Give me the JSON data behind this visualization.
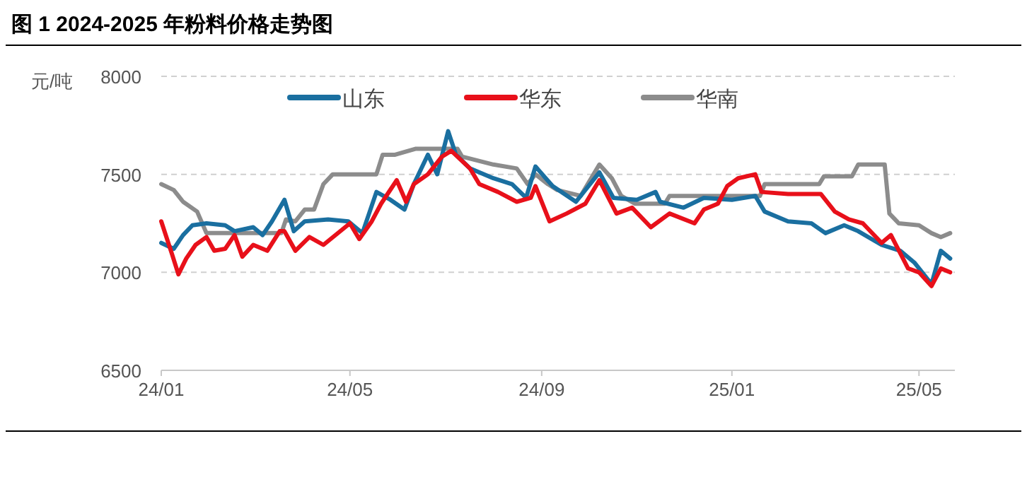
{
  "chart_data": {
    "type": "line",
    "title": "图 1 2024-2025 年粉料价格走势图",
    "ylabel": "元/吨",
    "xlim": [
      "2024-01-01",
      "2025-05-24"
    ],
    "ylim": [
      6500,
      8000
    ],
    "yticks": [
      6500,
      7000,
      7500,
      8000
    ],
    "xticks": [
      {
        "value": "2024-01-01",
        "label": "24/01"
      },
      {
        "value": "2024-05-01",
        "label": "24/05"
      },
      {
        "value": "2024-09-01",
        "label": "24/09"
      },
      {
        "value": "2025-01-01",
        "label": "25/01"
      },
      {
        "value": "2025-05-01",
        "label": "25/05"
      }
    ],
    "grid": "y",
    "legend": "top",
    "marker": "none",
    "line_style": "solid",
    "series": [
      {
        "name": "山东",
        "color": "#1a6fa0",
        "x": [
          "2024-01-01",
          "2024-01-09",
          "2024-01-15",
          "2024-01-21",
          "2024-01-30",
          "2024-02-11",
          "2024-02-17",
          "2024-02-29",
          "2024-03-06",
          "2024-03-12",
          "2024-03-20",
          "2024-03-26",
          "2024-04-02",
          "2024-04-17",
          "2024-04-30",
          "2024-05-09",
          "2024-05-18",
          "2024-05-27",
          "2024-06-05",
          "2024-06-11",
          "2024-06-20",
          "2024-06-26",
          "2024-07-03",
          "2024-07-08",
          "2024-07-17",
          "2024-08-01",
          "2024-08-13",
          "2024-08-22",
          "2024-08-28",
          "2024-09-08",
          "2024-09-23",
          "2024-10-08",
          "2024-10-17",
          "2024-11-01",
          "2024-11-13",
          "2024-11-16",
          "2024-12-01",
          "2024-12-14",
          "2025-01-01",
          "2025-01-16",
          "2025-01-22",
          "2025-02-06",
          "2025-02-21",
          "2025-03-02",
          "2025-03-14",
          "2025-03-23",
          "2025-04-07",
          "2025-04-19",
          "2025-04-28",
          "2025-05-09",
          "2025-05-15",
          "2025-05-21"
        ],
        "values": [
          7150,
          7120,
          7190,
          7240,
          7250,
          7240,
          7210,
          7230,
          7190,
          7260,
          7370,
          7210,
          7260,
          7270,
          7260,
          7200,
          7410,
          7370,
          7320,
          7450,
          7600,
          7500,
          7720,
          7600,
          7530,
          7480,
          7450,
          7380,
          7540,
          7440,
          7360,
          7510,
          7380,
          7370,
          7410,
          7360,
          7330,
          7380,
          7370,
          7390,
          7310,
          7260,
          7250,
          7200,
          7240,
          7210,
          7140,
          7110,
          7050,
          6940,
          7110,
          7070
        ]
      },
      {
        "name": "华东",
        "color": "#e8101a",
        "x": [
          "2024-01-01",
          "2024-01-08",
          "2024-01-12",
          "2024-01-17",
          "2024-01-23",
          "2024-01-30",
          "2024-02-04",
          "2024-02-11",
          "2024-02-17",
          "2024-02-22",
          "2024-02-29",
          "2024-03-09",
          "2024-03-17",
          "2024-03-20",
          "2024-03-27",
          "2024-04-05",
          "2024-04-14",
          "2024-05-01",
          "2024-05-07",
          "2024-05-15",
          "2024-05-21",
          "2024-05-31",
          "2024-06-06",
          "2024-06-11",
          "2024-06-20",
          "2024-06-29",
          "2024-07-05",
          "2024-07-17",
          "2024-07-23",
          "2024-08-04",
          "2024-08-16",
          "2024-08-25",
          "2024-08-28",
          "2024-09-06",
          "2024-09-17",
          "2024-09-29",
          "2024-10-08",
          "2024-10-19",
          "2024-10-29",
          "2024-11-10",
          "2024-11-22",
          "2024-12-08",
          "2024-12-14",
          "2024-12-23",
          "2024-12-29",
          "2025-01-05",
          "2025-01-16",
          "2025-01-20",
          "2025-02-06",
          "2025-02-27",
          "2025-03-08",
          "2025-03-17",
          "2025-03-26",
          "2025-04-07",
          "2025-04-13",
          "2025-04-24",
          "2025-05-01",
          "2025-05-09",
          "2025-05-15",
          "2025-05-21"
        ],
        "values": [
          7260,
          7090,
          6990,
          7070,
          7140,
          7180,
          7110,
          7120,
          7190,
          7080,
          7140,
          7110,
          7210,
          7210,
          7110,
          7180,
          7140,
          7250,
          7170,
          7260,
          7350,
          7470,
          7360,
          7450,
          7500,
          7590,
          7620,
          7530,
          7450,
          7410,
          7360,
          7380,
          7440,
          7260,
          7300,
          7350,
          7470,
          7300,
          7330,
          7230,
          7300,
          7250,
          7320,
          7350,
          7440,
          7480,
          7500,
          7410,
          7400,
          7400,
          7310,
          7270,
          7250,
          7150,
          7190,
          7020,
          7000,
          6930,
          7020,
          7000
        ]
      },
      {
        "name": "华南",
        "color": "#8c8c8c",
        "x": [
          "2024-01-01",
          "2024-01-09",
          "2024-01-15",
          "2024-01-24",
          "2024-01-30",
          "2024-02-17",
          "2024-03-18",
          "2024-03-21",
          "2024-03-27",
          "2024-04-02",
          "2024-04-08",
          "2024-04-14",
          "2024-04-20",
          "2024-05-18",
          "2024-05-22",
          "2024-05-30",
          "2024-06-12",
          "2024-07-09",
          "2024-07-12",
          "2024-08-01",
          "2024-08-16",
          "2024-08-23",
          "2024-08-28",
          "2024-09-05",
          "2024-09-11",
          "2024-09-26",
          "2024-10-08",
          "2024-10-16",
          "2024-10-22",
          "2024-10-31",
          "2024-11-19",
          "2024-11-22",
          "2024-12-14",
          "2025-01-19",
          "2025-01-22",
          "2025-02-26",
          "2025-03-01",
          "2025-03-19",
          "2025-03-23",
          "2025-04-09",
          "2025-04-12",
          "2025-04-18",
          "2025-05-01",
          "2025-05-09",
          "2025-05-15",
          "2025-05-21"
        ],
        "values": [
          7450,
          7420,
          7360,
          7310,
          7200,
          7200,
          7200,
          7270,
          7260,
          7320,
          7320,
          7450,
          7500,
          7500,
          7600,
          7600,
          7630,
          7630,
          7590,
          7550,
          7530,
          7450,
          7500,
          7450,
          7420,
          7390,
          7550,
          7480,
          7390,
          7350,
          7350,
          7390,
          7390,
          7390,
          7450,
          7450,
          7490,
          7490,
          7550,
          7550,
          7300,
          7250,
          7240,
          7200,
          7180,
          7200
        ]
      }
    ]
  }
}
